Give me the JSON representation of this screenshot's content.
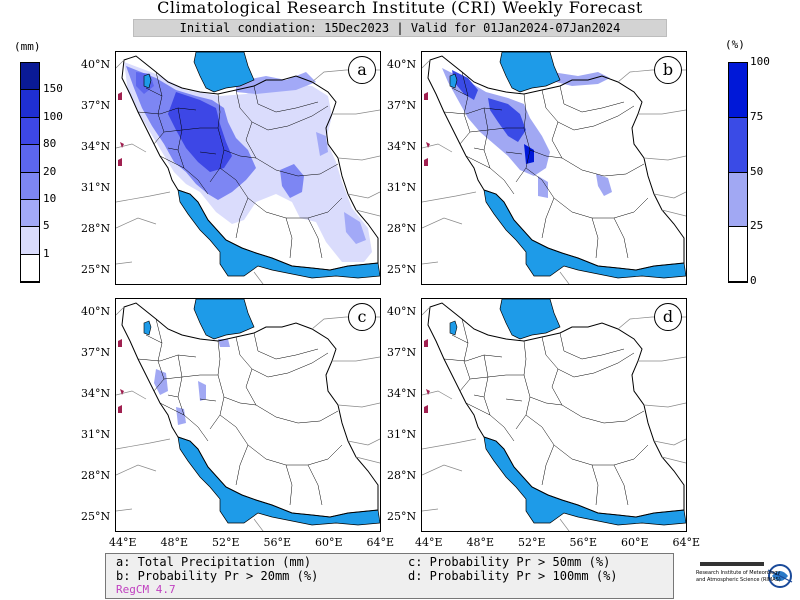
{
  "header": {
    "title": "Climatological Research Institute (CRI) Weekly Forecast",
    "subtitle": "Initial condiation: 15Dec2023 | Valid for 01Jan2024-07Jan2024"
  },
  "colorbar_left": {
    "unit": "(mm)",
    "ticks": [
      "150",
      "100",
      "80",
      "20",
      "10",
      "5",
      "1"
    ],
    "colors": [
      "#0a1a96",
      "#1f2fd2",
      "#3d47e6",
      "#5c66ee",
      "#7d86f3",
      "#a2a9f7",
      "#dadcfc",
      "#ffffff"
    ]
  },
  "colorbar_right": {
    "unit": "(%)",
    "ticks": [
      "100",
      "75",
      "50",
      "25",
      "0"
    ],
    "colors": [
      "#0018d8",
      "#3a4be6",
      "#a1a8f3",
      "#ffffff"
    ]
  },
  "panels": [
    {
      "label": "a"
    },
    {
      "label": "b"
    },
    {
      "label": "c"
    },
    {
      "label": "d"
    }
  ],
  "axes": {
    "lat_ticks": [
      "40°N",
      "37°N",
      "34°N",
      "31°N",
      "28°N",
      "25°N"
    ],
    "lon_ticks": [
      "44°E",
      "48°E",
      "52°E",
      "56°E",
      "60°E",
      "64°E"
    ]
  },
  "legend": {
    "a": "a: Total Precipitation (mm)",
    "b": "b: Probability Pr > 20mm (%)",
    "c": "c: Probability Pr > 50mm (%)",
    "d": "d: Probability Pr > 100mm (%)",
    "model": "RegCM 4.7"
  },
  "logo": {
    "line1": "Research Institute of Meteorology",
    "line2": "and Atmospheric Science (RIMAS)"
  },
  "colors": {
    "sea": "#1e9be8",
    "lake": "#1e9be8",
    "precip_light": "#dadcfc",
    "precip_dark": "#3d47e6"
  }
}
